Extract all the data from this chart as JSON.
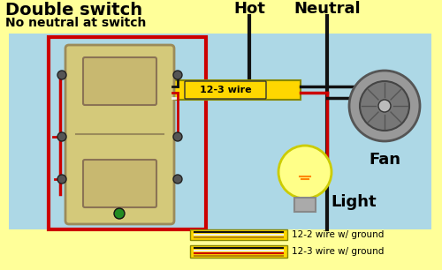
{
  "bg_color": "#FFFF99",
  "diagram_bg": "#ADD8E6",
  "switch_color": "#D4C97A",
  "toggle_color": "#C8B870",
  "wire_colors": {
    "black": "#111111",
    "red": "#CC0000",
    "white": "#F0F0F0",
    "yellow": "#FFD700",
    "ground": "#8B6914",
    "bare": "#B8860B"
  },
  "title_line1": "Double switch",
  "title_line2": "No neutral at switch",
  "label_hot": "Hot",
  "label_neutral": "Neutral",
  "label_fan": "Fan",
  "label_light": "Light",
  "wire_label": "12-3 wire",
  "legend_labels": [
    "12-2 wire w/ ground",
    "12-3 wire w/ ground"
  ],
  "title_color": "#000000",
  "switch_border_color": "#CC0000",
  "fan_color": "#888888",
  "fan_inner_color": "#777777",
  "bulb_color": "#FFFF88",
  "bulb_border": "#CCCC00"
}
